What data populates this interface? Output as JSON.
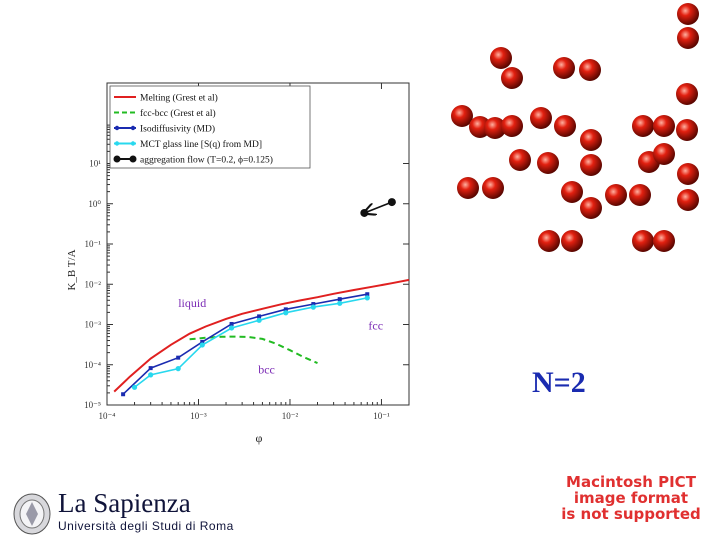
{
  "chart_data": {
    "type": "line",
    "xscale": "log",
    "yscale": "log",
    "xlabel": "φ",
    "ylabel": "K_B T/A",
    "xlim": [
      0.0001,
      0.2
    ],
    "ylim": [
      1e-05,
      1000
    ],
    "x_ticks": [
      {
        "value": 0.0001,
        "label": "10⁻⁴"
      },
      {
        "value": 0.001,
        "label": "10⁻³"
      },
      {
        "value": 0.01,
        "label": "10⁻²"
      },
      {
        "value": 0.1,
        "label": "10⁻¹"
      }
    ],
    "y_ticks": [
      {
        "value": 1e-05,
        "label": "10⁻⁵"
      },
      {
        "value": 0.0001,
        "label": "10⁻⁴"
      },
      {
        "value": 0.001,
        "label": "10⁻³"
      },
      {
        "value": 0.01,
        "label": "10⁻²"
      },
      {
        "value": 0.1,
        "label": "10⁻¹"
      },
      {
        "value": 1,
        "label": "10⁰"
      },
      {
        "value": 10,
        "label": "10¹"
      }
    ],
    "series": [
      {
        "name": "Melting (Grest et al)",
        "color": "#e02020",
        "style": "solid",
        "markers": false,
        "x": [
          0.00012,
          0.00018,
          0.0003,
          0.0005,
          0.0008,
          0.0012,
          0.002,
          0.003,
          0.005,
          0.008,
          0.013,
          0.02,
          0.03,
          0.05,
          0.08,
          0.13,
          0.2
        ],
        "y": [
          2.15e-05,
          5.2e-05,
          0.000143,
          0.000313,
          0.00059,
          0.00089,
          0.00138,
          0.00184,
          0.00245,
          0.00317,
          0.00397,
          0.00477,
          0.0058,
          0.0072,
          0.0087,
          0.0106,
          0.0128
        ]
      },
      {
        "name": "fcc-bcc (Grest et al)",
        "color": "#22bb22",
        "style": "dashed",
        "markers": false,
        "x": [
          0.0008,
          0.0012,
          0.0018,
          0.0025,
          0.0035,
          0.005,
          0.007,
          0.01,
          0.014,
          0.02
        ],
        "y": [
          0.00043,
          0.00047,
          0.000495,
          0.0005,
          0.00049,
          0.00044,
          0.000336,
          0.00023,
          0.000157,
          0.00011
        ]
      },
      {
        "name": "Isodiffusivity (MD)",
        "color": "#1a2bb0",
        "style": "solid",
        "markers": true,
        "x": [
          0.00015,
          0.0003,
          0.0006,
          0.0011,
          0.0023,
          0.0046,
          0.009,
          0.018,
          0.035,
          0.07
        ],
        "y": [
          1.85e-05,
          8.25e-05,
          0.00015,
          0.00037,
          0.00103,
          0.00159,
          0.00238,
          0.00322,
          0.00426,
          0.00565
        ]
      },
      {
        "name": "MCT glass line [S(q) from MD]",
        "color": "#28d8ee",
        "style": "solid",
        "markers": true,
        "x": [
          0.0002,
          0.0003,
          0.0006,
          0.0011,
          0.0023,
          0.0046,
          0.009,
          0.018,
          0.035,
          0.07
        ],
        "y": [
          2.75e-05,
          5.6e-05,
          8e-05,
          0.00031,
          0.00082,
          0.00127,
          0.00196,
          0.0027,
          0.00336,
          0.00459
        ]
      },
      {
        "name": "aggregation flow (T=0.2, ϕ=0.125)",
        "color": "#111111",
        "style": "solid",
        "markers": true,
        "arrow": true,
        "x": [
          0.13,
          0.065
        ],
        "y": [
          1.1,
          0.59
        ]
      }
    ],
    "annotations": [
      {
        "text": "liquid",
        "x": 0.0006,
        "y": 0.0027
      },
      {
        "text": "fcc",
        "x": 0.072,
        "y": 0.00075
      },
      {
        "text": "bcc",
        "x": 0.0045,
        "y": 6e-05
      }
    ],
    "legend_position": "top-left"
  },
  "panel": {
    "label": "N=2"
  },
  "placeholder": {
    "line1": "Macintosh PICT",
    "line2": "image format",
    "line3": "is not supported"
  },
  "logo": {
    "title": "La Sapienza",
    "subtitle": "Università degli Studi di Roma"
  }
}
